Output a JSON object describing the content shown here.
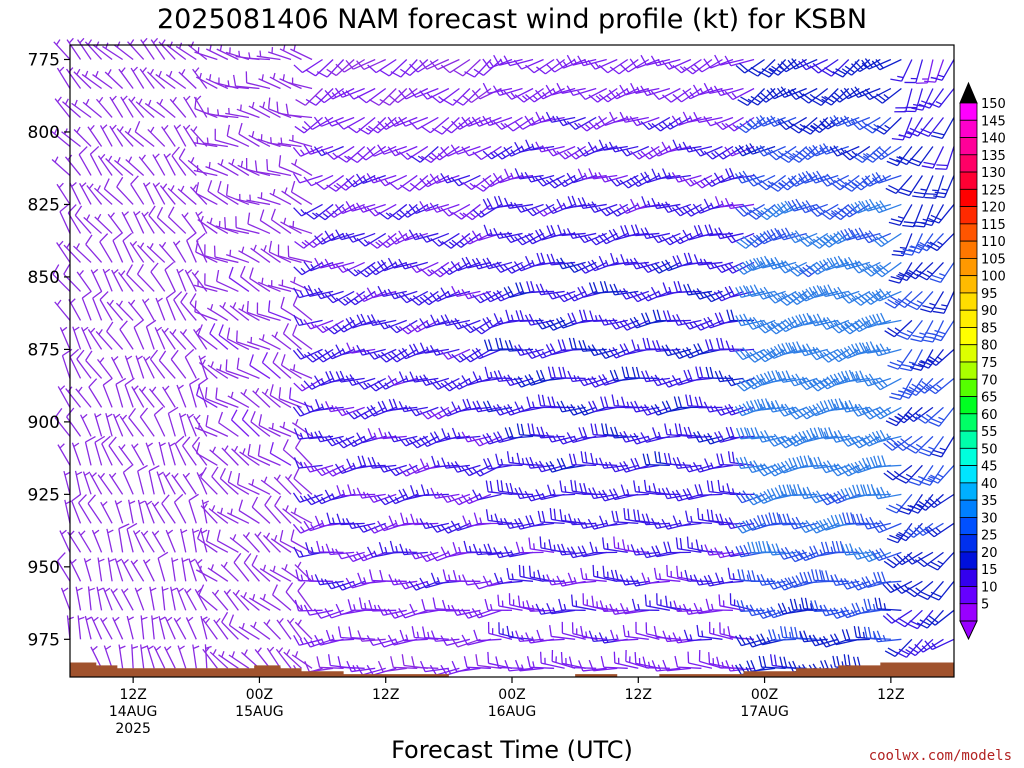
{
  "chart_data": {
    "type": "wind-barb-profile",
    "title": "2025081406 NAM forecast wind profile (kt) for KSBN",
    "xlabel": "Forecast Time (UTC)",
    "credit": "coolwx.com/models",
    "y_axis": {
      "label": "",
      "ticks": [
        "775",
        "800",
        "825",
        "850",
        "875",
        "900",
        "925",
        "950",
        "975"
      ],
      "range_hpa": [
        770,
        988
      ],
      "inverted": true
    },
    "x_axis": {
      "range_hours": [
        0,
        84
      ],
      "ticks": [
        {
          "hour": 6,
          "lines": [
            "12Z",
            "14AUG",
            "2025"
          ]
        },
        {
          "hour": 18,
          "lines": [
            "00Z",
            "15AUG"
          ]
        },
        {
          "hour": 30,
          "lines": [
            "12Z"
          ]
        },
        {
          "hour": 42,
          "lines": [
            "00Z",
            "16AUG"
          ]
        },
        {
          "hour": 54,
          "lines": [
            "12Z"
          ]
        },
        {
          "hour": 66,
          "lines": [
            "00Z",
            "17AUG"
          ]
        },
        {
          "hour": 78,
          "lines": [
            "12Z"
          ]
        }
      ]
    },
    "colorbar": {
      "units": "kt",
      "labels": [
        "150",
        "145",
        "140",
        "135",
        "130",
        "125",
        "120",
        "115",
        "110",
        "105",
        "100",
        "95",
        "90",
        "85",
        "80",
        "75",
        "70",
        "65",
        "60",
        "55",
        "50",
        "45",
        "40",
        "35",
        "30",
        "25",
        "20",
        "15",
        "10",
        "5"
      ],
      "colors": [
        "#ff00ff",
        "#ff00cc",
        "#ff0099",
        "#ff0066",
        "#ff0033",
        "#ff0000",
        "#ff2a00",
        "#ff5500",
        "#ff7700",
        "#ff9900",
        "#ffbb00",
        "#ffdd00",
        "#ffee00",
        "#ffff00",
        "#ddff00",
        "#aaff00",
        "#55ff00",
        "#00ff22",
        "#00ff66",
        "#00ffaa",
        "#00ffdd",
        "#00e5ff",
        "#00b0ff",
        "#0080ff",
        "#0050ff",
        "#0030ee",
        "#0010dd",
        "#3300ee",
        "#6600ff",
        "#9900ff"
      ]
    },
    "surface_pressure": {
      "hours": [
        0,
        2.5,
        4.5,
        13.5,
        17.5,
        20,
        22,
        24,
        26,
        30,
        36,
        44,
        48,
        52,
        56,
        60,
        64,
        69,
        73,
        77,
        84
      ],
      "hpa": [
        983,
        984,
        985,
        985,
        984,
        985,
        986,
        986,
        987,
        987,
        988,
        988,
        987,
        988,
        987,
        987,
        986,
        985,
        984,
        983,
        983
      ]
    },
    "wind_regimes": [
      {
        "hours": [
          0,
          14
        ],
        "dir_deg": 330,
        "speed_kt": 6
      },
      {
        "hours": [
          14,
          24
        ],
        "dir_deg": 300,
        "speed_kt": 7
      },
      {
        "hours": [
          24,
          42
        ],
        "dir_deg": 250,
        "speed_kt": 14
      },
      {
        "hours": [
          42,
          66
        ],
        "dir_deg": 260,
        "speed_kt": 16
      },
      {
        "hours": [
          66,
          80
        ],
        "dir_deg": 250,
        "speed_kt": 28
      },
      {
        "hours": [
          80,
          84
        ],
        "dir_deg": 220,
        "speed_kt": 22
      }
    ]
  }
}
